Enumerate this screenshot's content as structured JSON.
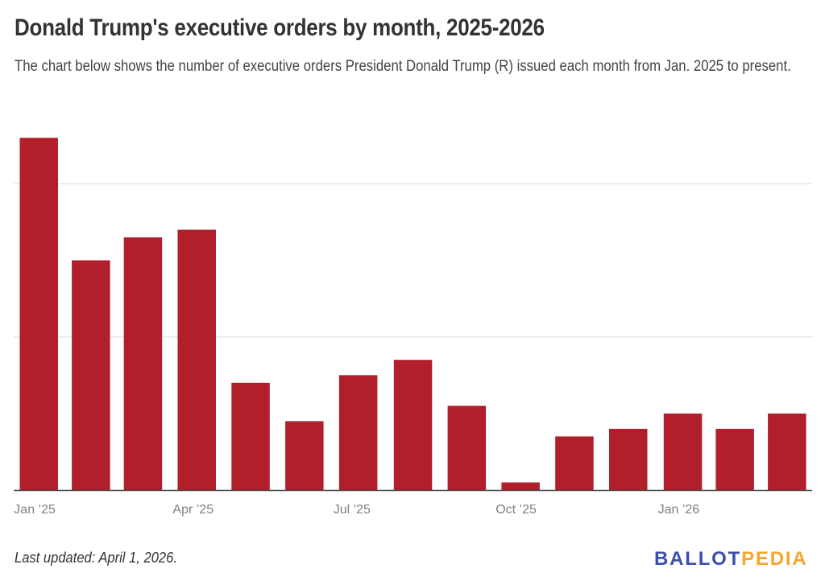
{
  "header": {
    "title": "Donald Trump's executive orders by month, 2025-2026",
    "subtitle": "The chart below shows the number of executive orders President Donald Trump (R) issued each month from Jan. 2025 to present."
  },
  "footer": {
    "note": "Last updated: April 1, 2026.",
    "logo_part1": "BALLOT",
    "logo_part2": "PEDIA"
  },
  "colors": {
    "bar": "#b01f2a",
    "gridline": "#e6e6e6",
    "baseline": "#444444",
    "logo_primary": "#3a4fad",
    "logo_secondary": "#f5a62b"
  },
  "chart_data": {
    "type": "bar",
    "title": "Donald Trump's executive orders by month, 2025-2026",
    "xlabel": "",
    "ylabel": "",
    "categories": [
      "2025-01",
      "2025-02",
      "2025-03",
      "2025-04",
      "2025-05",
      "2025-06",
      "2025-07",
      "2025-08",
      "2025-09",
      "2025-10",
      "2025-11",
      "2025-12",
      "2026-01",
      "2026-02",
      "2026-03"
    ],
    "series": [
      {
        "name": "Executive orders",
        "values": [
          46,
          30,
          33,
          34,
          14,
          9,
          15,
          17,
          11,
          1,
          7,
          8,
          10,
          8,
          10
        ]
      }
    ],
    "x_tick_labels": [
      {
        "date": "2025-01",
        "label": "Jan ’25"
      },
      {
        "date": "2025-04",
        "label": "Apr ’25"
      },
      {
        "date": "2025-07",
        "label": "Jul ’25"
      },
      {
        "date": "2025-10",
        "label": "Oct ’25"
      },
      {
        "date": "2026-01",
        "label": "Jan ’26"
      }
    ],
    "y_gridlines": [
      20,
      40
    ],
    "y_tick_labels_visible": false,
    "ylim": [
      0,
      46
    ],
    "grid": true,
    "legend": "none"
  }
}
